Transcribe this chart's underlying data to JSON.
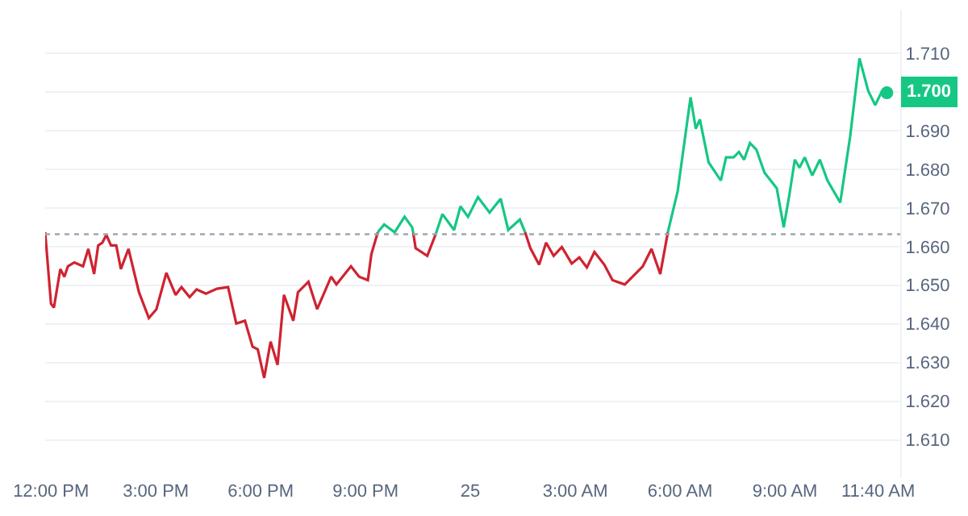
{
  "chart_data": {
    "type": "line",
    "series": [
      {
        "color": "#cf2331",
        "x": [
          "--01-24T11:50",
          "--01-24T12:00",
          "--01-24T12:05",
          "--01-24T12:16",
          "--01-24T12:23",
          "--01-24T12:29",
          "--01-24T12:40",
          "--01-24T12:55",
          "--01-24T13:04",
          "--01-24T13:14",
          "--01-24T13:21",
          "--01-24T13:28",
          "--01-24T13:35",
          "--01-24T13:43",
          "--01-24T13:52",
          "--01-24T14:00",
          "--01-24T14:13",
          "--01-24T14:31",
          "--01-24T14:48",
          "--01-24T15:01",
          "--01-24T15:18",
          "--01-24T15:34",
          "--01-24T15:44",
          "--01-24T15:58",
          "--01-24T16:10",
          "--01-24T16:26",
          "--01-24T16:45",
          "--01-24T17:04",
          "--01-24T17:18",
          "--01-24T17:33",
          "--01-24T17:46",
          "--01-24T17:55",
          "--01-24T18:06",
          "--01-24T18:17",
          "--01-24T18:29",
          "--01-24T18:40",
          "--01-24T18:56",
          "--01-24T19:04",
          "--01-24T19:22",
          "--01-24T19:37",
          "--01-24T20:01",
          "--01-24T20:10",
          "--01-24T20:35",
          "--01-24T20:49",
          "--01-24T21:04",
          "--01-24T21:10",
          "--01-24T21:21",
          "--01-24T21:54",
          "--01-24T22:22",
          "--01-24T22:26",
          "--01-24T22:46",
          "--01-24T23:01",
          "--01-25T00:18",
          "--01-25T01:34",
          "--01-25T01:43",
          "--01-25T01:58",
          "--01-25T02:10",
          "--01-25T02:23",
          "--01-25T02:37",
          "--01-25T02:54",
          "--01-25T03:07",
          "--01-25T03:20",
          "--01-25T03:33",
          "--01-25T03:50",
          "--01-25T04:04",
          "--01-25T04:25",
          "--01-25T04:43",
          "--01-25T04:56",
          "--01-25T05:11",
          "--01-25T05:26",
          "--01-25T05:39"
        ],
        "values": [
          1.6637,
          1.6452,
          1.6442,
          1.6542,
          1.6522,
          1.6549,
          1.6559,
          1.6549,
          1.6594,
          1.6529,
          1.6603,
          1.661,
          1.663,
          1.6603,
          1.6603,
          1.6542,
          1.6594,
          1.6482,
          1.6415,
          1.6438,
          1.6532,
          1.6475,
          1.6495,
          1.6469,
          1.6489,
          1.6478,
          1.6491,
          1.6495,
          1.6401,
          1.6408,
          1.6341,
          1.6334,
          1.626,
          1.6354,
          1.6294,
          1.6475,
          1.6408,
          1.6482,
          1.6509,
          1.6438,
          1.6522,
          1.6502,
          1.6549,
          1.6522,
          1.6513,
          1.658,
          1.6637,
          null,
          1.6635,
          1.6596,
          1.6576,
          1.6634,
          null,
          1.6637,
          1.6596,
          1.6553,
          1.661,
          1.6576,
          1.6599,
          1.6556,
          1.6572,
          1.6546,
          1.6586,
          1.6553,
          1.6513,
          1.6502,
          1.6529,
          1.6549,
          1.6594,
          1.6529,
          1.6637
        ]
      },
      {
        "color": "#16c784",
        "x": [
          "--01-24T21:21",
          "--01-24T21:32",
          "--01-24T21:50",
          "--01-24T22:07",
          "--01-24T22:20",
          "--01-24T22:22",
          "--01-24T22:36",
          "--01-24T23:01",
          "--01-24T23:12",
          "--01-24T23:32",
          "--01-24T23:43",
          "--01-24T23:56",
          "--01-25T00:13",
          "--01-25T00:33",
          "--01-25T00:52",
          "--01-25T01:05",
          "--01-25T01:25",
          "--01-25T01:34",
          "--01-25T03:30",
          "--01-25T05:39",
          "--01-25T05:56",
          "--01-25T06:18",
          "--01-25T06:27",
          "--01-25T06:34",
          "--01-25T06:49",
          "--01-25T07:10",
          "--01-25T07:19",
          "--01-25T07:32",
          "--01-25T07:41",
          "--01-25T07:50",
          "--01-25T08:00",
          "--01-25T08:11",
          "--01-25T08:25",
          "--01-25T08:46",
          "--01-25T08:58",
          "--01-25T09:08",
          "--01-25T09:17",
          "--01-25T09:25",
          "--01-25T09:34",
          "--01-25T09:47",
          "--01-25T10:00",
          "--01-25T10:13",
          "--01-25T10:35",
          "--01-25T10:52",
          "--01-25T11:08",
          "--01-25T11:23",
          "--01-25T11:35",
          "--01-25T11:46",
          "--01-25T11:55"
        ],
        "values": [
          1.6637,
          1.6657,
          1.6637,
          1.6677,
          1.665,
          1.6635,
          null,
          1.6634,
          1.6684,
          1.6643,
          1.6704,
          1.6677,
          1.6728,
          1.6688,
          1.6724,
          1.6643,
          1.667,
          1.6637,
          null,
          1.6637,
          1.6744,
          1.6986,
          1.6905,
          1.6929,
          1.6818,
          1.6771,
          1.6831,
          1.6831,
          1.6845,
          1.6825,
          1.6868,
          1.6851,
          1.6791,
          1.6751,
          1.665,
          1.6737,
          1.6825,
          1.6804,
          1.6831,
          1.6784,
          1.6825,
          1.6771,
          1.6714,
          1.6885,
          1.7087,
          1.7003,
          1.6966,
          1.7,
          1.6998
        ]
      },
      {
        "type": "scatter",
        "marker": "circle",
        "color": "#16c784",
        "x": [
          "--01-25T11:55"
        ],
        "values": [
          1.6998
        ]
      }
    ],
    "xlim": [
      "--01-24T11:50",
      "--01-25T12:18"
    ],
    "xticks": [
      {
        "value": "--01-24T12:00",
        "label": "12:00 PM"
      },
      {
        "value": "--01-24T15:00",
        "label": "3:00 PM"
      },
      {
        "value": "--01-24T18:00",
        "label": "6:00 PM"
      },
      {
        "value": "--01-24T21:00",
        "label": "9:00 PM"
      },
      {
        "value": "--01-25T00:00",
        "label": "25"
      },
      {
        "value": "--01-25T03:00",
        "label": "3:00 AM"
      },
      {
        "value": "--01-25T06:00",
        "label": "6:00 AM"
      },
      {
        "value": "--01-25T09:00",
        "label": "9:00 AM"
      },
      {
        "value": "--01-25T11:40",
        "label": "11:40 AM"
      }
    ],
    "ylim": [
      1.6003,
      1.7213
    ],
    "yticks": [
      {
        "value": 1.61,
        "label": "1.610"
      },
      {
        "value": 1.62,
        "label": "1.620"
      },
      {
        "value": 1.63,
        "label": "1.630"
      },
      {
        "value": 1.64,
        "label": "1.640"
      },
      {
        "value": 1.65,
        "label": "1.650"
      },
      {
        "value": 1.66,
        "label": "1.660"
      },
      {
        "value": 1.67,
        "label": "1.670"
      },
      {
        "value": 1.68,
        "label": "1.680"
      },
      {
        "value": 1.69,
        "label": "1.690"
      },
      {
        "value": 1.7,
        "label": null
      },
      {
        "value": 1.71,
        "label": "1.710"
      }
    ],
    "grid": "y",
    "line_style": "solid",
    "ref_lines": [
      {
        "axis": "y",
        "value": 1.6632,
        "color": "#a0a7b4",
        "line_style": "dotted"
      }
    ],
    "annotations": [
      {
        "text": "1.700",
        "y": 1.7
      }
    ]
  }
}
